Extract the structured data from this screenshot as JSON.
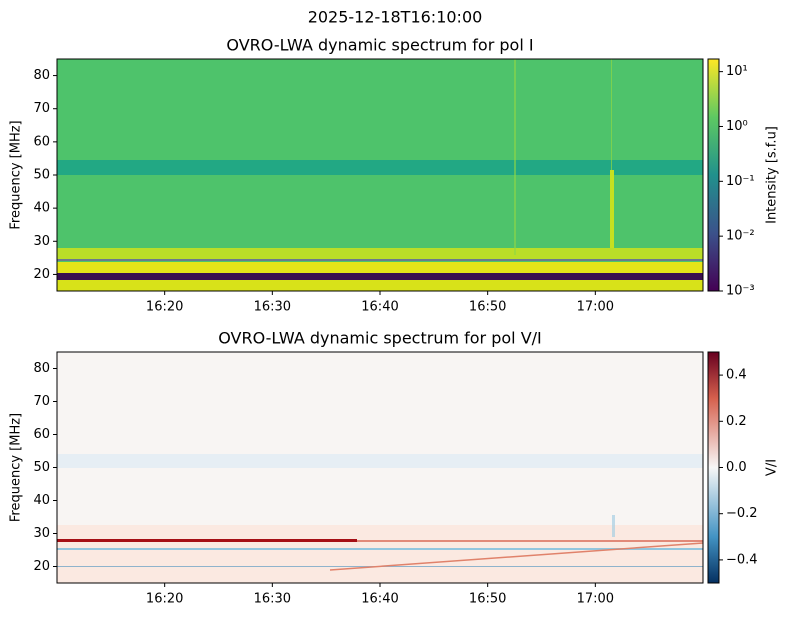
{
  "title": "2025-12-18T16:10:00",
  "chart_data": [
    {
      "type": "heatmap",
      "title": "OVRO-LWA dynamic spectrum for pol I",
      "ylabel": "Frequency [MHz]",
      "xlim": [
        "16:10",
        "17:10"
      ],
      "xticks": [
        "16:20",
        "16:30",
        "16:40",
        "16:50",
        "17:00"
      ],
      "ylim": [
        15,
        85
      ],
      "yticks": [
        20,
        30,
        40,
        50,
        60,
        70,
        80
      ],
      "colorbar": {
        "label": "Intensity [s.f.u]",
        "scale": "log",
        "cmap": "viridis",
        "lim": [
          0.001,
          17
        ],
        "ticks": [
          {
            "value": 0.001,
            "label": "10⁻³"
          },
          {
            "value": 0.01,
            "label": "10⁻²"
          },
          {
            "value": 0.1,
            "label": "10⁻¹"
          },
          {
            "value": 1,
            "label": "10⁰"
          },
          {
            "value": 10,
            "label": "10¹"
          }
        ]
      }
    },
    {
      "type": "heatmap",
      "title": "OVRO-LWA dynamic spectrum for pol V/I",
      "ylabel": "Frequency [MHz]",
      "xlim": [
        "16:10",
        "17:10"
      ],
      "xticks": [
        "16:20",
        "16:30",
        "16:40",
        "16:50",
        "17:00"
      ],
      "ylim": [
        15,
        85
      ],
      "yticks": [
        20,
        30,
        40,
        50,
        60,
        70,
        80
      ],
      "colorbar": {
        "label": "V/I",
        "scale": "linear",
        "cmap": "RdBu_r",
        "lim": [
          -0.5,
          0.5
        ],
        "ticks": [
          {
            "value": -0.4,
            "label": "−0.4"
          },
          {
            "value": -0.2,
            "label": "−0.2"
          },
          {
            "value": 0,
            "label": "0.0"
          },
          0.2,
          0.4
        ]
      }
    }
  ]
}
